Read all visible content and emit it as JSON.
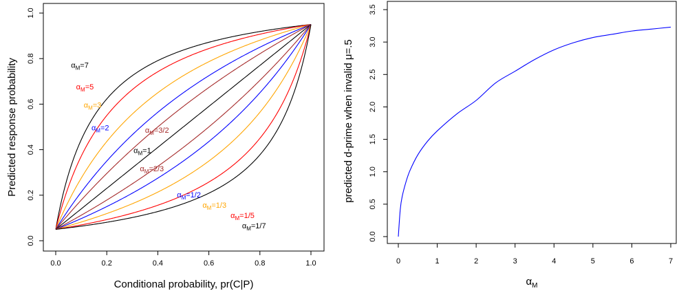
{
  "chart_data": [
    {
      "type": "line",
      "xlabel": "Conditional probability, pr(C|P)",
      "ylabel": "Predicted response probability",
      "xlim": [
        0,
        1
      ],
      "ylim": [
        0,
        1
      ],
      "x_ticks": [
        0.0,
        0.2,
        0.4,
        0.6,
        0.8,
        1.0
      ],
      "x_tick_labels": [
        "0.0",
        "0.2",
        "0.4",
        "0.6",
        "0.8",
        "1.0"
      ],
      "y_ticks": [
        0.0,
        0.2,
        0.4,
        0.6,
        0.8,
        1.0
      ],
      "y_tick_labels": [
        "0.0",
        "0.2",
        "0.4",
        "0.6",
        "0.8",
        "1.0"
      ],
      "grid": false,
      "curve_floor": 0.05,
      "curve_ceiling": 0.95,
      "series": [
        {
          "alpha": 7,
          "color": "#000000",
          "label_base": "α",
          "label_sub": "M",
          "label_rest": "=7",
          "label_x": 0.06,
          "label_y": 0.76
        },
        {
          "alpha": 5,
          "color": "#ff0000",
          "label_base": "α",
          "label_sub": "M",
          "label_rest": "=5",
          "label_x": 0.08,
          "label_y": 0.665
        },
        {
          "alpha": 3,
          "color": "#ffa500",
          "label_base": "α",
          "label_sub": "M",
          "label_rest": "=3",
          "label_x": 0.11,
          "label_y": 0.585
        },
        {
          "alpha": 2,
          "color": "#0000ff",
          "label_base": "α",
          "label_sub": "M",
          "label_rest": "=2",
          "label_x": 0.14,
          "label_y": 0.485
        },
        {
          "alpha": 1.5,
          "color": "#a52a2a",
          "label_base": "α",
          "label_sub": "M",
          "label_rest": "=3/2",
          "label_x": 0.35,
          "label_y": 0.475
        },
        {
          "alpha": 1,
          "color": "#000000",
          "label_base": "α",
          "label_sub": "M",
          "label_rest": "=1",
          "label_x": 0.305,
          "label_y": 0.385
        },
        {
          "alpha": 0.6667,
          "color": "#a52a2a",
          "label_base": "α",
          "label_sub": "M",
          "label_rest": "=2/3",
          "label_x": 0.33,
          "label_y": 0.305
        },
        {
          "alpha": 0.5,
          "color": "#0000ff",
          "label_base": "α",
          "label_sub": "M",
          "label_rest": "=1/2",
          "label_x": 0.475,
          "label_y": 0.19
        },
        {
          "alpha": 0.3333,
          "color": "#ffa500",
          "label_base": "α",
          "label_sub": "M",
          "label_rest": "=1/3",
          "label_x": 0.575,
          "label_y": 0.145
        },
        {
          "alpha": 0.2,
          "color": "#ff0000",
          "label_base": "α",
          "label_sub": "M",
          "label_rest": "=1/5",
          "label_x": 0.685,
          "label_y": 0.1
        },
        {
          "alpha": 0.142857,
          "color": "#000000",
          "label_base": "α",
          "label_sub": "M",
          "label_rest": "=1/7",
          "label_x": 0.73,
          "label_y": 0.055
        }
      ]
    },
    {
      "type": "line",
      "xlabel_base": "α",
      "xlabel_sub": "M",
      "ylabel": "predicted d-prime when invalid μ=.5",
      "xlim": [
        0,
        7
      ],
      "ylim": [
        0,
        3.5
      ],
      "x_ticks": [
        0,
        1,
        2,
        3,
        4,
        5,
        6,
        7
      ],
      "x_tick_labels": [
        "0",
        "1",
        "2",
        "3",
        "4",
        "5",
        "6",
        "7"
      ],
      "y_ticks": [
        0,
        0.5,
        1.0,
        1.5,
        2.0,
        2.5,
        3.0,
        3.5
      ],
      "y_tick_labels": [
        "0.0",
        "0.5",
        "1.0",
        "1.5",
        "2.0",
        "2.5",
        "3.0",
        "3.5"
      ],
      "grid": false,
      "series": [
        {
          "color": "#0000ff",
          "x": [
            0,
            0.05,
            0.1,
            0.2,
            0.3,
            0.5,
            0.75,
            1,
            1.5,
            2,
            2.5,
            3,
            3.5,
            4,
            4.5,
            5,
            5.5,
            6,
            6.5,
            7
          ],
          "y": [
            0,
            0.42,
            0.62,
            0.85,
            1.02,
            1.26,
            1.47,
            1.63,
            1.89,
            2.1,
            2.37,
            2.55,
            2.73,
            2.88,
            2.99,
            3.07,
            3.12,
            3.17,
            3.2,
            3.23
          ]
        }
      ]
    }
  ]
}
